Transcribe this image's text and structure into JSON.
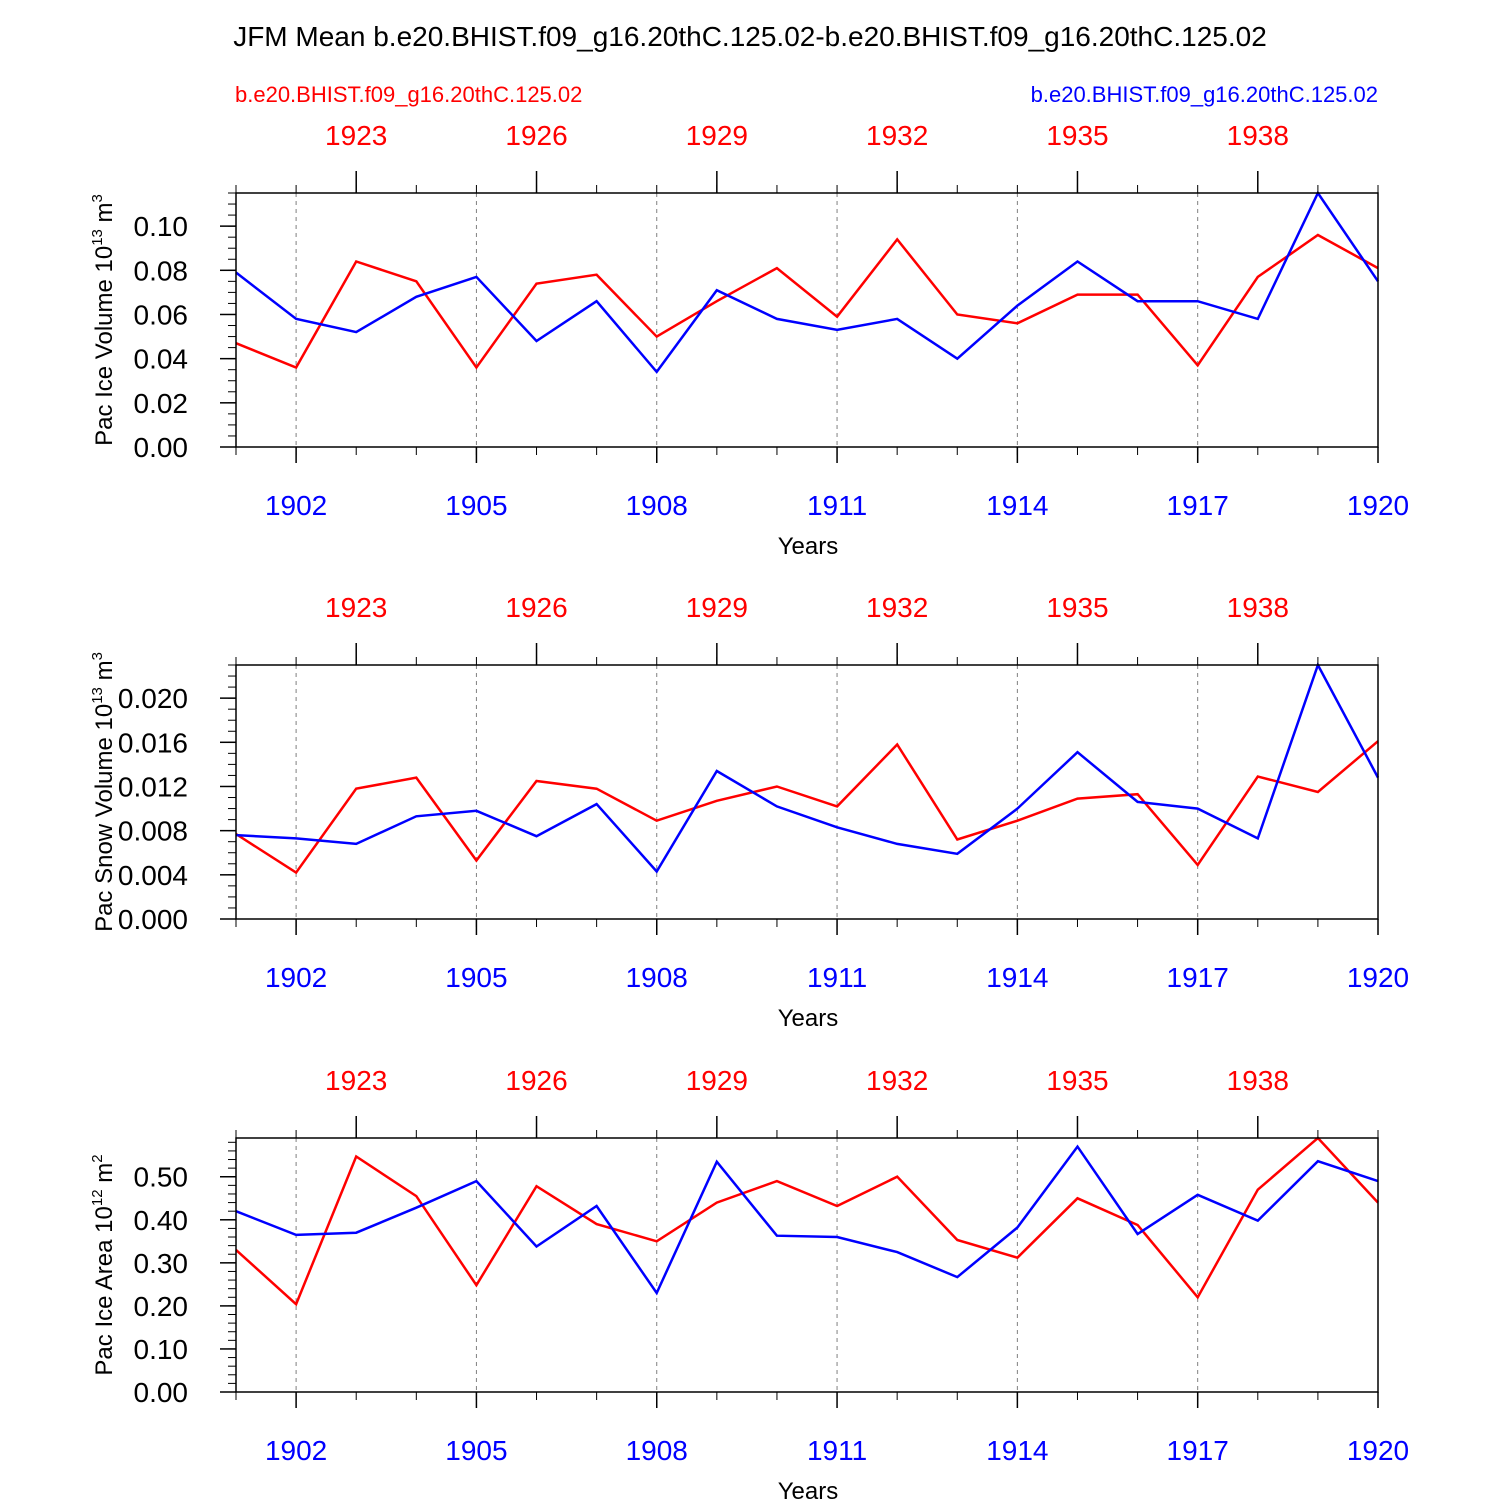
{
  "title": "JFM Mean b.e20.BHIST.f09_g16.20thC.125.02-b.e20.BHIST.f09_g16.20thC.125.02",
  "case_labels": {
    "left": "b.e20.BHIST.f09_g16.20thC.125.02",
    "right": "b.e20.BHIST.f09_g16.20thC.125.02"
  },
  "colors": {
    "red_series": "#ff0000",
    "blue_series": "#0000ff",
    "axis": "#000000",
    "grid": "#808080"
  },
  "chart_data": [
    {
      "type": "line",
      "ylabel": "Pac Ice Volume 10",
      "ylabel_sup": "13",
      "ylabel_unit": " m",
      "ylabel_unit_sup": "3",
      "xlabel": "Years",
      "ylim": [
        0,
        0.115
      ],
      "yticks": [
        0,
        0.02,
        0.04,
        0.06,
        0.08,
        0.1
      ],
      "ytick_labels": [
        "0.00",
        "0.02",
        "0.04",
        "0.06",
        "0.08",
        "0.10"
      ],
      "yminor_step": 0.005,
      "xlim": [
        1901,
        1920
      ],
      "bottom_ticks": [
        1902,
        1905,
        1908,
        1911,
        1914,
        1917,
        1920
      ],
      "top_ticks": [
        1923,
        1926,
        1929,
        1932,
        1935,
        1938
      ],
      "top_offset": 20,
      "series": [
        {
          "name": "b.e20.BHIST.f09_g16.20thC.125.02",
          "color": "#ff0000",
          "values": [
            0.047,
            0.036,
            0.084,
            0.075,
            0.036,
            0.074,
            0.078,
            0.05,
            0.066,
            0.081,
            0.059,
            0.094,
            0.06,
            0.056,
            0.069,
            0.069,
            0.037,
            0.077,
            0.096,
            0.081
          ]
        },
        {
          "name": "b.e20.BHIST.f09_g16.20thC.125.02",
          "color": "#0000ff",
          "values": [
            0.079,
            0.058,
            0.052,
            0.068,
            0.077,
            0.048,
            0.066,
            0.034,
            0.071,
            0.058,
            0.053,
            0.058,
            0.04,
            0.064,
            0.084,
            0.066,
            0.066,
            0.058,
            0.115,
            0.075
          ]
        }
      ]
    },
    {
      "type": "line",
      "ylabel": "Pac Snow Volume 10",
      "ylabel_sup": "13",
      "ylabel_unit": " m",
      "ylabel_unit_sup": "3",
      "xlabel": "Years",
      "ylim": [
        0,
        0.023
      ],
      "yticks": [
        0,
        0.004,
        0.008,
        0.012,
        0.016,
        0.02
      ],
      "ytick_labels": [
        "0.000",
        "0.004",
        "0.008",
        "0.012",
        "0.016",
        "0.020"
      ],
      "yminor_step": 0.001,
      "xlim": [
        1901,
        1920
      ],
      "bottom_ticks": [
        1902,
        1905,
        1908,
        1911,
        1914,
        1917,
        1920
      ],
      "top_ticks": [
        1923,
        1926,
        1929,
        1932,
        1935,
        1938
      ],
      "top_offset": 20,
      "series": [
        {
          "name": "b.e20.BHIST.f09_g16.20thC.125.02",
          "color": "#ff0000",
          "values": [
            0.0077,
            0.0042,
            0.0118,
            0.0128,
            0.0053,
            0.0125,
            0.0118,
            0.0089,
            0.0107,
            0.012,
            0.0102,
            0.0158,
            0.0072,
            0.0089,
            0.0109,
            0.0113,
            0.0049,
            0.0129,
            0.0115,
            0.0161
          ]
        },
        {
          "name": "b.e20.BHIST.f09_g16.20thC.125.02",
          "color": "#0000ff",
          "values": [
            0.0076,
            0.0073,
            0.0068,
            0.0093,
            0.0098,
            0.0075,
            0.0104,
            0.0043,
            0.0134,
            0.0102,
            0.0083,
            0.0068,
            0.0059,
            0.01,
            0.0151,
            0.0106,
            0.01,
            0.0073,
            0.023,
            0.0128
          ]
        }
      ]
    },
    {
      "type": "line",
      "ylabel": "Pac Ice Area 10",
      "ylabel_sup": "12",
      "ylabel_unit": " m",
      "ylabel_unit_sup": "2",
      "xlabel": "Years",
      "ylim": [
        0,
        0.59
      ],
      "yticks": [
        0,
        0.1,
        0.2,
        0.3,
        0.4,
        0.5
      ],
      "ytick_labels": [
        "0.00",
        "0.10",
        "0.20",
        "0.30",
        "0.40",
        "0.50"
      ],
      "yminor_step": 0.02,
      "xlim": [
        1901,
        1920
      ],
      "bottom_ticks": [
        1902,
        1905,
        1908,
        1911,
        1914,
        1917,
        1920
      ],
      "top_ticks": [
        1923,
        1926,
        1929,
        1932,
        1935,
        1938
      ],
      "top_offset": 20,
      "series": [
        {
          "name": "b.e20.BHIST.f09_g16.20thC.125.02",
          "color": "#ff0000",
          "values": [
            0.33,
            0.204,
            0.547,
            0.455,
            0.248,
            0.478,
            0.39,
            0.35,
            0.44,
            0.49,
            0.432,
            0.5,
            0.353,
            0.312,
            0.45,
            0.388,
            0.22,
            0.47,
            0.59,
            0.44
          ]
        },
        {
          "name": "b.e20.BHIST.f09_g16.20thC.125.02",
          "color": "#0000ff",
          "values": [
            0.42,
            0.365,
            0.37,
            0.428,
            0.49,
            0.338,
            0.432,
            0.23,
            0.535,
            0.363,
            0.36,
            0.325,
            0.267,
            0.382,
            0.57,
            0.367,
            0.458,
            0.398,
            0.536,
            0.49
          ]
        }
      ]
    }
  ]
}
